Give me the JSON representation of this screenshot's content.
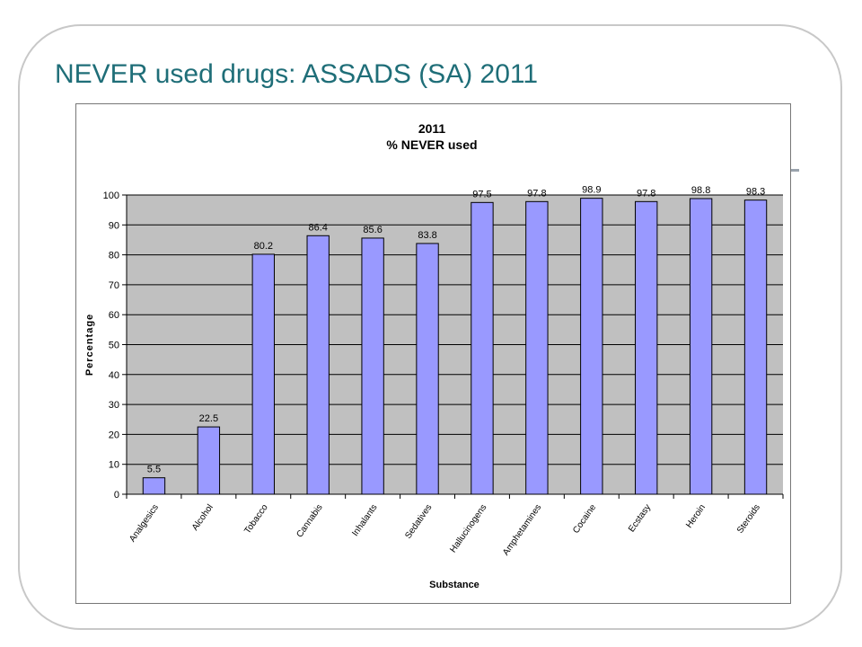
{
  "slide": {
    "title": "NEVER used drugs: ASSADS (SA) 2011"
  },
  "colors": {
    "title": "#1f6e78",
    "bar_fill": "#9999ff",
    "bar_stroke": "#000000",
    "plot_bg": "#c0c0c0"
  },
  "chart_data": {
    "type": "bar",
    "title_lines": [
      "2011",
      "% NEVER used"
    ],
    "xlabel": "Substance",
    "ylabel": "Percentage",
    "ylim": [
      0,
      100
    ],
    "yticks": [
      0,
      10,
      20,
      30,
      40,
      50,
      60,
      70,
      80,
      90,
      100
    ],
    "grid": true,
    "legend": "none",
    "categories": [
      "Analgesics",
      "Alcohol",
      "Tobacco",
      "Cannabis",
      "Inhalants",
      "Sedatives",
      "Hallucinogens",
      "Amphetamines",
      "Cocaine",
      "Ecstasy",
      "Heroin",
      "Steroids"
    ],
    "values": [
      5.5,
      22.5,
      80.2,
      86.4,
      85.6,
      83.8,
      97.5,
      97.8,
      98.9,
      97.8,
      98.8,
      98.3
    ]
  }
}
